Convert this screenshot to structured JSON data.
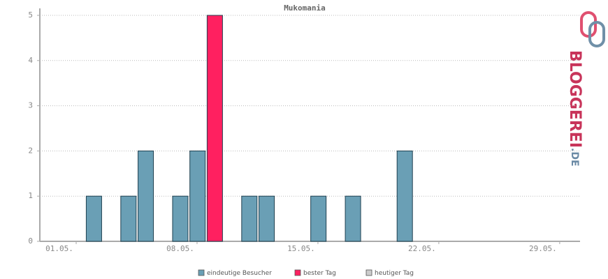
{
  "chart_data": {
    "type": "bar",
    "title": "Mukomania",
    "categories": [
      "01.05.",
      null,
      null,
      null,
      null,
      null,
      null,
      "08.05.",
      null,
      null,
      null,
      null,
      null,
      null,
      "15.05.",
      null,
      null,
      null,
      null,
      null,
      null,
      "22.05.",
      null,
      null,
      null,
      null,
      null,
      null,
      "29.05.",
      null,
      null
    ],
    "series": [
      {
        "name": "eindeutige Besucher",
        "color": "#6a9fb5",
        "values": [
          null,
          null,
          1,
          null,
          1,
          2,
          null,
          1,
          2,
          null,
          null,
          1,
          1,
          null,
          null,
          1,
          null,
          1,
          null,
          null,
          2,
          null,
          null,
          null,
          null,
          null,
          null,
          null,
          null,
          null,
          null
        ]
      },
      {
        "name": "bester Tag",
        "color": "#ff2060",
        "values": [
          null,
          null,
          null,
          null,
          null,
          null,
          null,
          null,
          null,
          5,
          null,
          null,
          null,
          null,
          null,
          null,
          null,
          null,
          null,
          null,
          null,
          null,
          null,
          null,
          null,
          null,
          null,
          null,
          null,
          null,
          null
        ]
      },
      {
        "name": "heutiger Tag",
        "color": "#cccccc",
        "values": [
          null,
          null,
          null,
          null,
          null,
          null,
          null,
          null,
          null,
          null,
          null,
          null,
          null,
          null,
          null,
          null,
          null,
          null,
          null,
          null,
          null,
          null,
          null,
          null,
          null,
          null,
          null,
          null,
          null,
          null,
          null
        ]
      }
    ],
    "ylim": [
      0,
      5
    ],
    "yticks": [
      0,
      1,
      2,
      3,
      4,
      5
    ],
    "grid": true
  },
  "logo": {
    "name": "BLOGGEREI",
    "suffix": ".DE"
  }
}
